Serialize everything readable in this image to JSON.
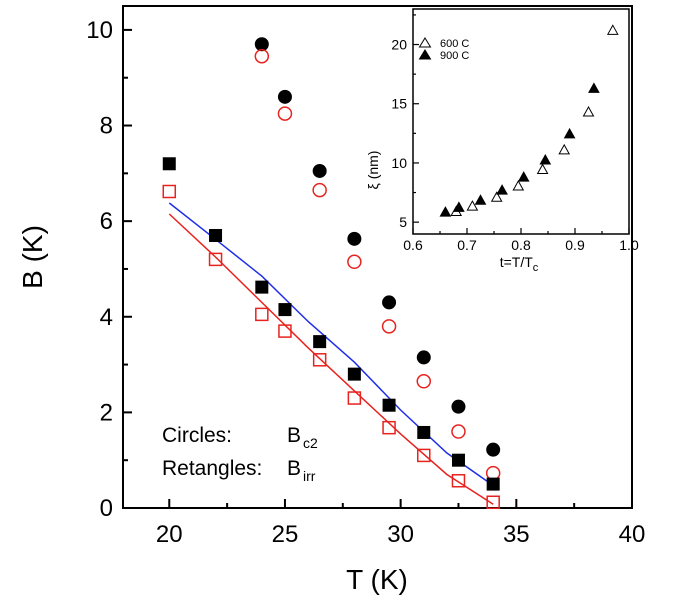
{
  "chart_data": [
    {
      "type": "scatter",
      "xlabel": "T (K)",
      "ylabel": "B (K)",
      "xlim": [
        18,
        40
      ],
      "ylim": [
        0,
        10.5
      ],
      "xticks": [
        20,
        25,
        30,
        35,
        40
      ],
      "yticks": [
        0,
        2,
        4,
        6,
        8,
        10
      ],
      "series": [
        {
          "marker": "filled-circle",
          "color": "#000000",
          "x": [
            24,
            25,
            26.5,
            28,
            29.5,
            31,
            32.5,
            34
          ],
          "y": [
            9.7,
            8.6,
            7.05,
            5.63,
            4.3,
            3.15,
            2.12,
            1.22
          ]
        },
        {
          "marker": "open-circle",
          "color": "#e8221e",
          "x": [
            24,
            25,
            26.5,
            28,
            29.5,
            31,
            32.5,
            34
          ],
          "y": [
            9.45,
            8.25,
            6.65,
            5.15,
            3.8,
            2.65,
            1.6,
            0.73
          ]
        },
        {
          "marker": "filled-square",
          "color": "#000000",
          "x": [
            20,
            22,
            24,
            25,
            26.5,
            28,
            29.5,
            31,
            32.5,
            34
          ],
          "y": [
            7.2,
            5.7,
            4.62,
            4.15,
            3.48,
            2.8,
            2.15,
            1.58,
            1.0,
            0.5
          ]
        },
        {
          "marker": "open-square",
          "color": "#e8221e",
          "x": [
            20,
            22,
            24,
            25,
            26.5,
            28,
            29.5,
            31,
            32.5,
            34
          ],
          "y": [
            6.62,
            5.2,
            4.05,
            3.7,
            3.1,
            2.3,
            1.68,
            1.1,
            0.57,
            0.12
          ]
        },
        {
          "marker": "line",
          "color": "#1f2fe6",
          "x": [
            20,
            22,
            24,
            26,
            28,
            30,
            32,
            34
          ],
          "y": [
            6.38,
            5.62,
            4.85,
            3.9,
            3.05,
            2.05,
            1.15,
            0.47
          ]
        },
        {
          "marker": "line",
          "color": "#e8221e",
          "x": [
            20,
            22,
            24,
            26,
            28,
            30,
            32,
            34
          ],
          "y": [
            6.15,
            5.25,
            4.3,
            3.35,
            2.45,
            1.55,
            0.7,
            0.08
          ]
        }
      ],
      "annotations": [
        {
          "label": "Circles:",
          "symbol": "B",
          "sub": "c2"
        },
        {
          "label": "Retangles:",
          "symbol": "B",
          "sub": "irr"
        }
      ]
    },
    {
      "type": "scatter",
      "xlabel": "t=T/T",
      "xlabel_sub": "c",
      "ylabel": "ξ (nm)",
      "xlim": [
        0.6,
        1.0
      ],
      "ylim": [
        4,
        23
      ],
      "xticks": [
        "0.6",
        "0.7",
        "0.8",
        "0.9",
        "1.0"
      ],
      "yticks": [
        "5",
        "10",
        "15",
        "20"
      ],
      "legend_position": "top-left",
      "series": [
        {
          "name": "600 C",
          "marker": "open-triangle",
          "color": "#000000",
          "x": [
            0.68,
            0.71,
            0.755,
            0.795,
            0.84,
            0.88,
            0.925,
            0.97
          ],
          "y": [
            5.9,
            6.35,
            7.1,
            8.05,
            9.45,
            11.1,
            14.3,
            21.2
          ]
        },
        {
          "name": "900 C",
          "marker": "filled-triangle",
          "color": "#000000",
          "x": [
            0.66,
            0.685,
            0.725,
            0.765,
            0.805,
            0.845,
            0.89,
            0.935
          ],
          "y": [
            5.85,
            6.25,
            6.85,
            7.7,
            8.8,
            10.25,
            12.45,
            16.3
          ]
        }
      ]
    }
  ]
}
